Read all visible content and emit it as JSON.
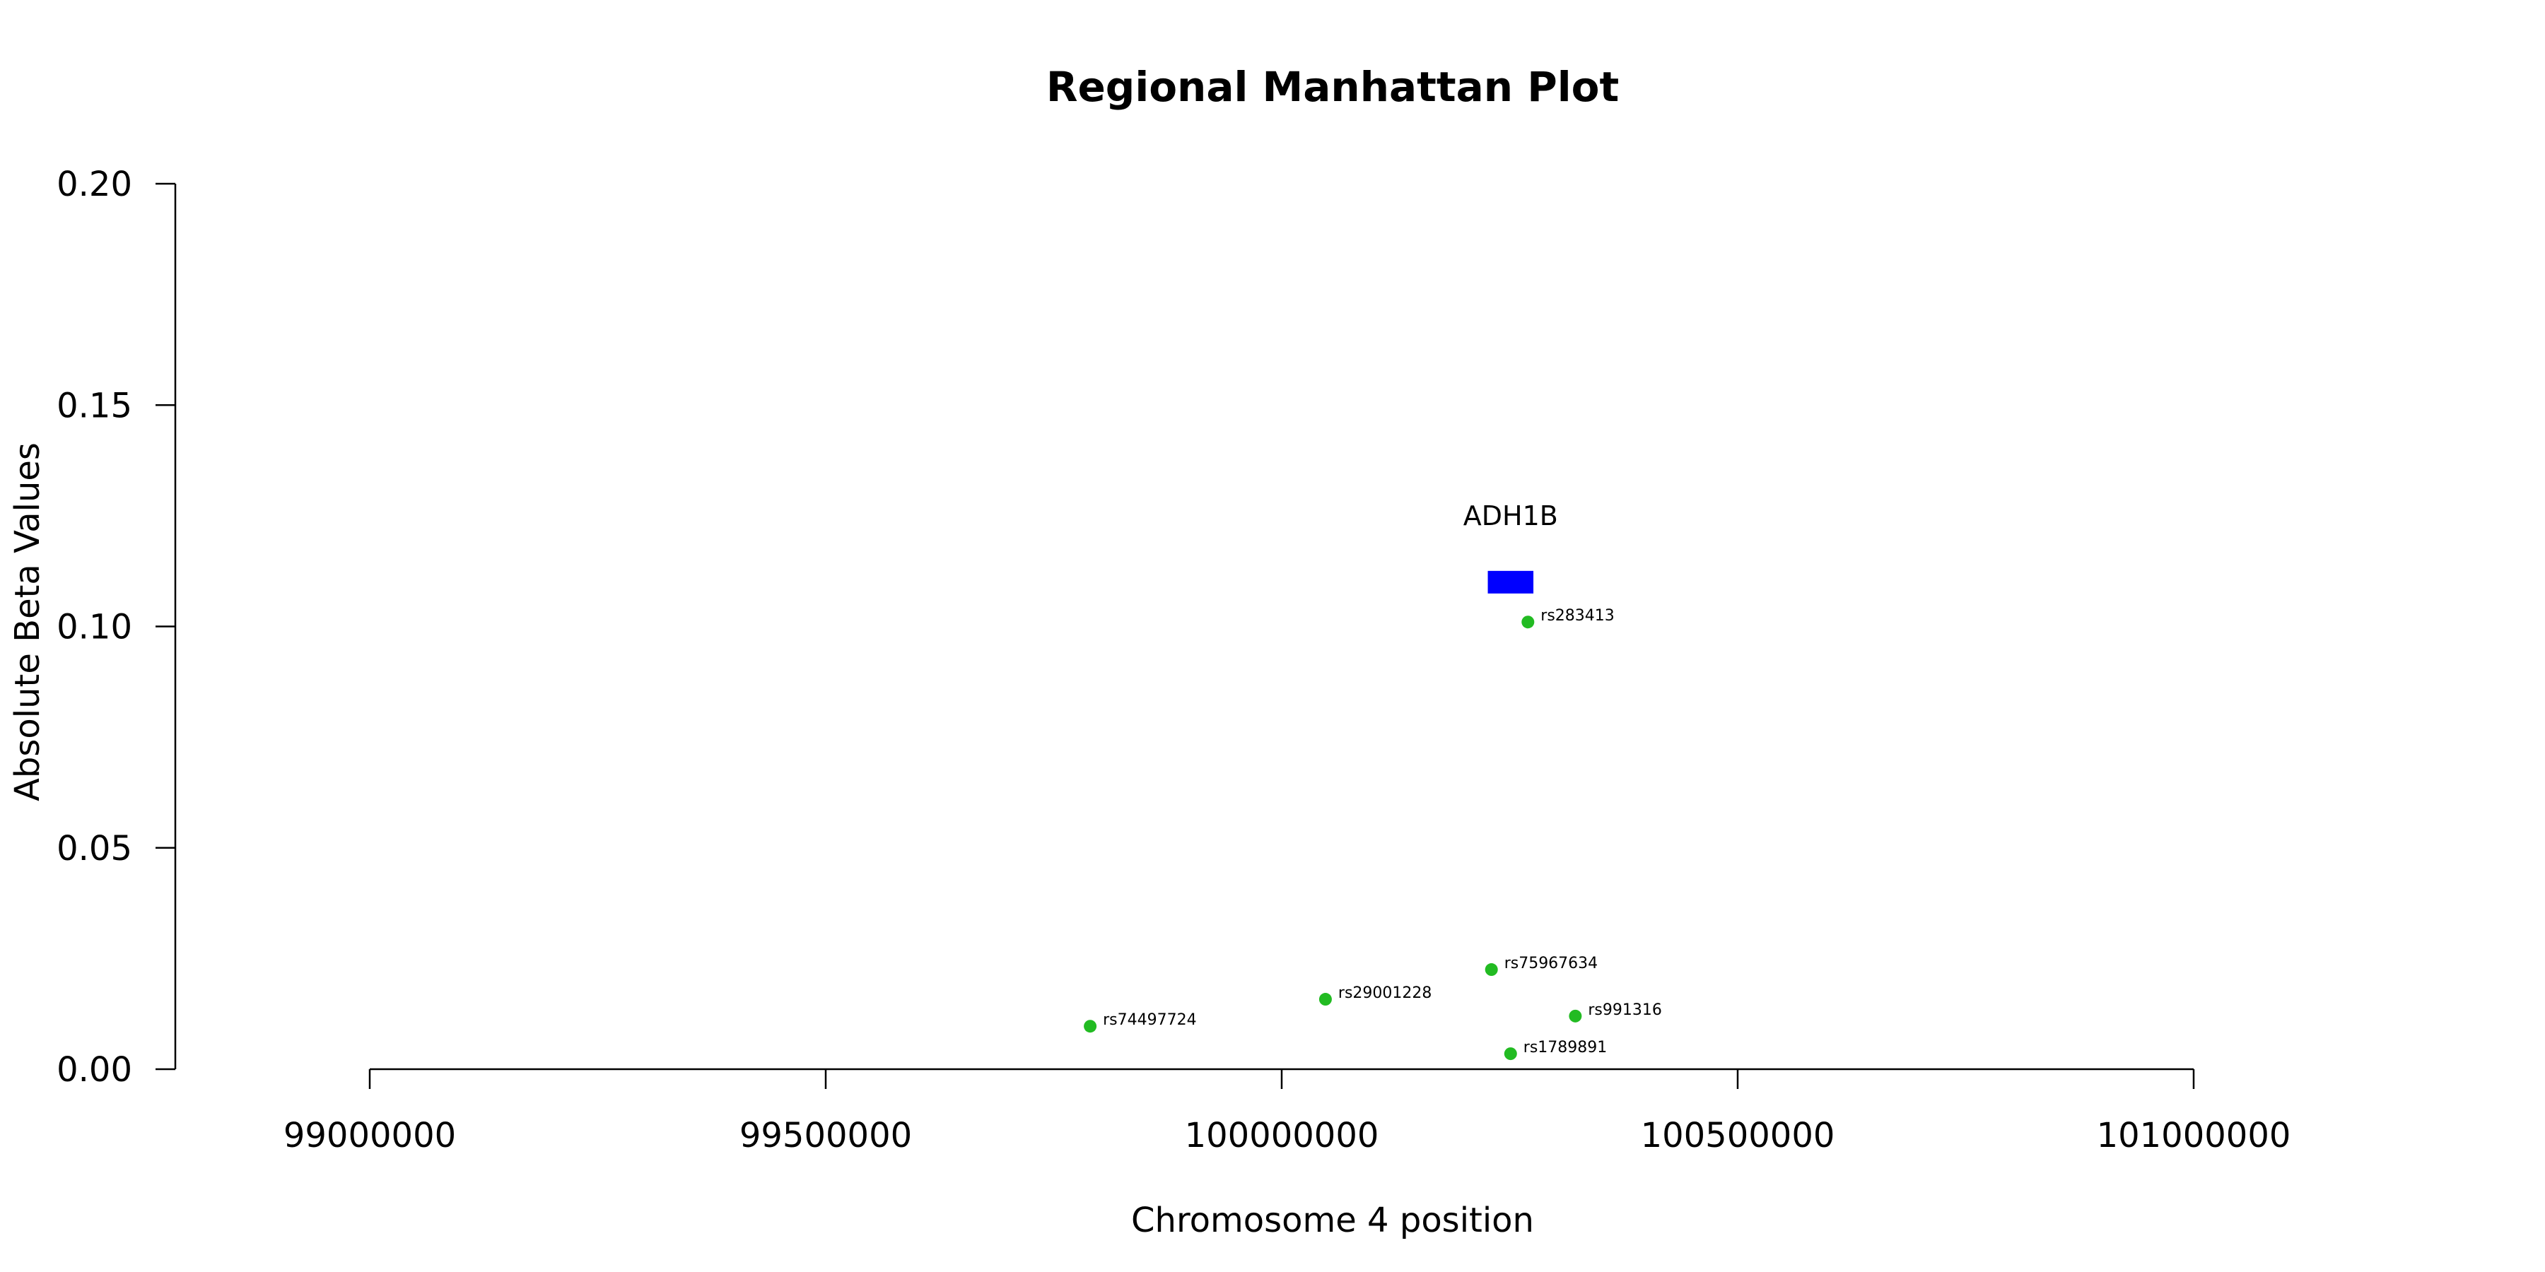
{
  "chart_data": {
    "type": "scatter",
    "title": "Regional Manhattan Plot",
    "xlabel": "Chromosome 4 position",
    "ylabel": "Absolute Beta Values",
    "xlim": [
      99000000,
      101000000
    ],
    "ylim": [
      0,
      0.2
    ],
    "x_ticks": [
      "99000000",
      "99500000",
      "100000000",
      "100500000",
      "101000000"
    ],
    "y_ticks": [
      "0.00",
      "0.05",
      "0.10",
      "0.15",
      "0.20"
    ],
    "grid": false,
    "point_color": "#22bb22",
    "points": [
      {
        "label": "rs283413",
        "x": 100270000,
        "y": 0.101
      },
      {
        "label": "rs75967634",
        "x": 100230000,
        "y": 0.0225
      },
      {
        "label": "rs29001228",
        "x": 100048000,
        "y": 0.0158
      },
      {
        "label": "rs991316",
        "x": 100322000,
        "y": 0.012
      },
      {
        "label": "rs74497724",
        "x": 99790000,
        "y": 0.0097
      },
      {
        "label": "rs1789891",
        "x": 100251000,
        "y": 0.0035
      }
    ],
    "genes": [
      {
        "name": "ADH1B",
        "start": 100226000,
        "end": 100276000,
        "y": 0.11,
        "color": "#0000ff"
      }
    ]
  }
}
